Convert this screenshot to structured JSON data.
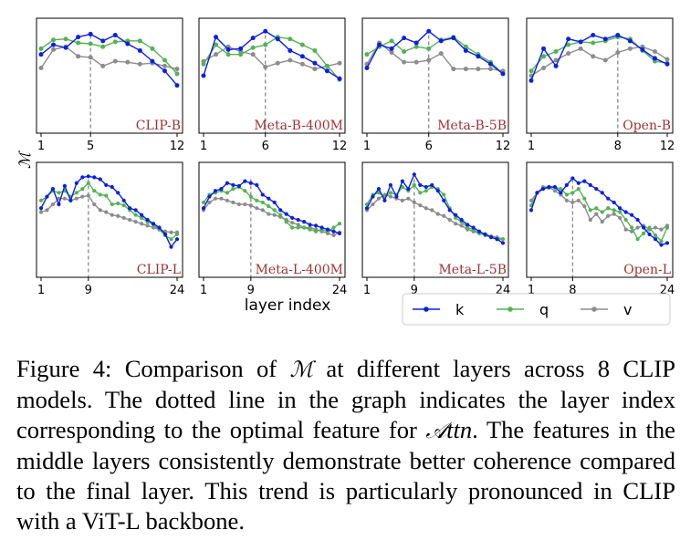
{
  "figure": {
    "y_axis_label": "ℳ",
    "x_axis_label": "layer index",
    "colors": {
      "k": "#0a1fe6",
      "q": "#52b352",
      "v": "#8c8c8c",
      "model_label": "#a23030"
    },
    "legend": [
      {
        "key": "k",
        "label": "k"
      },
      {
        "key": "q",
        "label": "q"
      },
      {
        "key": "v",
        "label": "v"
      }
    ]
  },
  "chart_data": [
    {
      "type": "line",
      "title": "CLIP-B",
      "x": [
        1,
        2,
        3,
        4,
        5,
        6,
        7,
        8,
        9,
        10,
        11,
        12
      ],
      "xticks": [
        1,
        5,
        12
      ],
      "optimal_layer": 5,
      "ylim": [
        0,
        1
      ],
      "series": [
        {
          "name": "k",
          "values": [
            0.72,
            0.82,
            0.79,
            0.9,
            0.93,
            0.86,
            0.92,
            0.83,
            0.76,
            0.65,
            0.55,
            0.4
          ]
        },
        {
          "name": "q",
          "values": [
            0.78,
            0.87,
            0.88,
            0.84,
            0.83,
            0.8,
            0.85,
            0.86,
            0.86,
            0.78,
            0.66,
            0.52
          ]
        },
        {
          "name": "v",
          "values": [
            0.58,
            0.77,
            0.8,
            0.7,
            0.69,
            0.6,
            0.65,
            0.64,
            0.62,
            0.63,
            0.6,
            0.57
          ]
        }
      ]
    },
    {
      "type": "line",
      "title": "Meta-B-400M",
      "x": [
        1,
        2,
        3,
        4,
        5,
        6,
        7,
        8,
        9,
        10,
        11,
        12
      ],
      "xticks": [
        1,
        6,
        12
      ],
      "optimal_layer": 6,
      "ylim": [
        0,
        1
      ],
      "series": [
        {
          "name": "k",
          "values": [
            0.5,
            0.9,
            0.77,
            0.78,
            0.89,
            0.96,
            0.88,
            0.76,
            0.7,
            0.63,
            0.55,
            0.47
          ]
        },
        {
          "name": "q",
          "values": [
            0.62,
            0.82,
            0.72,
            0.72,
            0.79,
            0.82,
            0.9,
            0.88,
            0.82,
            0.76,
            0.6,
            0.46
          ]
        },
        {
          "name": "v",
          "values": [
            0.65,
            0.72,
            0.8,
            0.75,
            0.72,
            0.59,
            0.63,
            0.66,
            0.62,
            0.57,
            0.6,
            0.63
          ]
        }
      ]
    },
    {
      "type": "line",
      "title": "Meta-B-5B",
      "x": [
        1,
        2,
        3,
        4,
        5,
        6,
        7,
        8,
        9,
        10,
        11,
        12
      ],
      "xticks": [
        1,
        6,
        12
      ],
      "optimal_layer": 6,
      "ylim": [
        0,
        1
      ],
      "series": [
        {
          "name": "k",
          "values": [
            0.58,
            0.82,
            0.78,
            0.89,
            0.84,
            0.96,
            0.86,
            0.89,
            0.76,
            0.7,
            0.62,
            0.52
          ]
        },
        {
          "name": "q",
          "values": [
            0.72,
            0.8,
            0.86,
            0.75,
            0.8,
            0.78,
            0.87,
            0.9,
            0.8,
            0.72,
            0.64,
            0.52
          ]
        },
        {
          "name": "v",
          "values": [
            0.62,
            0.84,
            0.74,
            0.64,
            0.64,
            0.66,
            0.73,
            0.57,
            0.57,
            0.57,
            0.57,
            0.55
          ]
        }
      ]
    },
    {
      "type": "line",
      "title": "Open-B",
      "x": [
        1,
        2,
        3,
        4,
        5,
        6,
        7,
        8,
        9,
        10,
        11,
        12
      ],
      "xticks": [
        1,
        8,
        12
      ],
      "optimal_layer": 8,
      "ylim": [
        0,
        1
      ],
      "series": [
        {
          "name": "k",
          "values": [
            0.45,
            0.78,
            0.6,
            0.88,
            0.85,
            0.92,
            0.88,
            0.92,
            0.86,
            0.77,
            0.68,
            0.62
          ]
        },
        {
          "name": "q",
          "values": [
            0.55,
            0.7,
            0.75,
            0.82,
            0.85,
            0.84,
            0.86,
            0.9,
            0.88,
            0.76,
            0.65,
            0.63
          ]
        },
        {
          "name": "v",
          "values": [
            0.5,
            0.58,
            0.66,
            0.73,
            0.78,
            0.7,
            0.66,
            0.74,
            0.78,
            0.8,
            0.75,
            0.67
          ]
        }
      ]
    },
    {
      "type": "line",
      "title": "CLIP-L",
      "x": [
        1,
        2,
        3,
        4,
        5,
        6,
        7,
        8,
        9,
        10,
        11,
        12,
        13,
        14,
        15,
        16,
        17,
        18,
        19,
        20,
        21,
        22,
        23,
        24
      ],
      "xticks": [
        1,
        9,
        24
      ],
      "optimal_layer": 9,
      "ylim": [
        0,
        1
      ],
      "series": [
        {
          "name": "k",
          "values": [
            0.62,
            0.74,
            0.82,
            0.66,
            0.85,
            0.7,
            0.88,
            0.94,
            0.95,
            0.94,
            0.92,
            0.86,
            0.84,
            0.78,
            0.7,
            0.62,
            0.6,
            0.55,
            0.5,
            0.46,
            0.42,
            0.35,
            0.22,
            0.3
          ]
        },
        {
          "name": "q",
          "values": [
            0.7,
            0.74,
            0.8,
            0.78,
            0.8,
            0.74,
            0.78,
            0.82,
            0.88,
            0.8,
            0.76,
            0.75,
            0.66,
            0.67,
            0.65,
            0.6,
            0.55,
            0.52,
            0.48,
            0.45,
            0.4,
            0.34,
            0.3,
            0.35
          ]
        },
        {
          "name": "v",
          "values": [
            0.58,
            0.6,
            0.66,
            0.72,
            0.72,
            0.7,
            0.72,
            0.74,
            0.75,
            0.66,
            0.6,
            0.58,
            0.55,
            0.54,
            0.52,
            0.5,
            0.48,
            0.46,
            0.44,
            0.42,
            0.4,
            0.38,
            0.37,
            0.37
          ]
        }
      ]
    },
    {
      "type": "line",
      "title": "Meta-L-400M",
      "x": [
        1,
        2,
        3,
        4,
        5,
        6,
        7,
        8,
        9,
        10,
        11,
        12,
        13,
        14,
        15,
        16,
        17,
        18,
        19,
        20,
        21,
        22,
        23,
        24
      ],
      "xticks": [
        1,
        9,
        24
      ],
      "optimal_layer": 9,
      "ylim": [
        0,
        1
      ],
      "series": [
        {
          "name": "k",
          "values": [
            0.62,
            0.74,
            0.8,
            0.82,
            0.88,
            0.86,
            0.85,
            0.9,
            0.88,
            0.86,
            0.76,
            0.72,
            0.68,
            0.6,
            0.56,
            0.52,
            0.5,
            0.48,
            0.45,
            0.44,
            0.42,
            0.4,
            0.38,
            0.36
          ]
        },
        {
          "name": "q",
          "values": [
            0.68,
            0.76,
            0.78,
            0.8,
            0.78,
            0.82,
            0.84,
            0.8,
            0.74,
            0.7,
            0.68,
            0.64,
            0.6,
            0.55,
            0.48,
            0.42,
            0.42,
            0.42,
            0.4,
            0.38,
            0.4,
            0.38,
            0.42,
            0.46
          ]
        },
        {
          "name": "v",
          "values": [
            0.6,
            0.68,
            0.72,
            0.72,
            0.7,
            0.68,
            0.66,
            0.66,
            0.65,
            0.62,
            0.6,
            0.56,
            0.55,
            0.53,
            0.5,
            0.47,
            0.45,
            0.42,
            0.42,
            0.4,
            0.38,
            0.36,
            0.34,
            0.37
          ]
        }
      ]
    },
    {
      "type": "line",
      "title": "Meta-L-5B",
      "x": [
        1,
        2,
        3,
        4,
        5,
        6,
        7,
        8,
        9,
        10,
        11,
        12,
        13,
        14,
        15,
        16,
        17,
        18,
        19,
        20,
        21,
        22,
        23,
        24
      ],
      "xticks": [
        1,
        9,
        24
      ],
      "optimal_layer": 9,
      "ylim": [
        0,
        1
      ],
      "series": [
        {
          "name": "k",
          "values": [
            0.62,
            0.74,
            0.82,
            0.7,
            0.86,
            0.74,
            0.9,
            0.82,
            0.97,
            0.86,
            0.84,
            0.86,
            0.8,
            0.7,
            0.6,
            0.55,
            0.5,
            0.45,
            0.42,
            0.38,
            0.35,
            0.32,
            0.3,
            0.26
          ]
        },
        {
          "name": "q",
          "values": [
            0.66,
            0.76,
            0.78,
            0.74,
            0.78,
            0.76,
            0.84,
            0.8,
            0.86,
            0.78,
            0.8,
            0.84,
            0.82,
            0.76,
            0.62,
            0.52,
            0.48,
            0.42,
            0.4,
            0.36,
            0.34,
            0.32,
            0.3,
            0.3
          ]
        },
        {
          "name": "v",
          "values": [
            0.6,
            0.66,
            0.72,
            0.76,
            0.74,
            0.72,
            0.7,
            0.72,
            0.68,
            0.65,
            0.62,
            0.6,
            0.56,
            0.54,
            0.5,
            0.46,
            0.44,
            0.4,
            0.38,
            0.36,
            0.35,
            0.33,
            0.32,
            0.3
          ]
        }
      ]
    },
    {
      "type": "line",
      "title": "Open-L",
      "x": [
        1,
        2,
        3,
        4,
        5,
        6,
        7,
        8,
        9,
        10,
        11,
        12,
        13,
        14,
        15,
        16,
        17,
        18,
        19,
        20,
        21,
        22,
        23,
        24
      ],
      "xticks": [
        1,
        8,
        24
      ],
      "optimal_layer": 8,
      "ylim": [
        0,
        1
      ],
      "series": [
        {
          "name": "k",
          "values": [
            0.6,
            0.78,
            0.82,
            0.84,
            0.84,
            0.78,
            0.86,
            0.93,
            0.88,
            0.9,
            0.86,
            0.82,
            0.78,
            0.72,
            0.68,
            0.62,
            0.58,
            0.55,
            0.5,
            0.42,
            0.35,
            0.3,
            0.24,
            0.26
          ]
        },
        {
          "name": "q",
          "values": [
            0.65,
            0.78,
            0.82,
            0.83,
            0.84,
            0.82,
            0.76,
            0.78,
            0.82,
            0.72,
            0.6,
            0.62,
            0.58,
            0.62,
            0.6,
            0.58,
            0.5,
            0.42,
            0.3,
            0.36,
            0.42,
            0.34,
            0.28,
            0.42
          ]
        },
        {
          "name": "v",
          "values": [
            0.7,
            0.78,
            0.84,
            0.84,
            0.8,
            0.76,
            0.7,
            0.68,
            0.7,
            0.64,
            0.5,
            0.56,
            0.48,
            0.54,
            0.56,
            0.52,
            0.4,
            0.38,
            0.42,
            0.44,
            0.4,
            0.42,
            0.4,
            0.44
          ]
        }
      ]
    }
  ],
  "caption": {
    "prefix": "Figure 4: Comparison of ",
    "symbol_m": "ℳ",
    "middle": " at different layers across 8 CLIP models. The dotted line in the graph indicates the layer index corresponding to the optimal feature for ",
    "symbol_attn_a": "𝒜",
    "symbol_attn_rest": "ttn",
    "suffix": ". The features in the middle layers consistently demonstrate better coherence compared to the final layer. This trend is particularly pronounced in CLIP with a ViT-L backbone."
  }
}
